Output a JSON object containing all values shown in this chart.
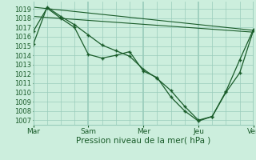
{
  "background_color": "#cceedd",
  "grid_color": "#99ccbb",
  "line_color": "#1a5c2a",
  "marker_color": "#1a5c2a",
  "xlabel": "Pression niveau de la mer( hPa )",
  "xtick_labels": [
    "Mar",
    "Sam",
    "Mer",
    "Jeu",
    "Ven"
  ],
  "xtick_positions": [
    0,
    48,
    96,
    144,
    192
  ],
  "xlim": [
    0,
    192
  ],
  "ylim": [
    1006.5,
    1019.8
  ],
  "ytick_min": 1007,
  "ytick_max": 1019,
  "series_curved1_x": [
    0,
    12,
    24,
    36,
    48,
    60,
    72,
    84,
    96,
    108,
    120,
    132,
    144,
    156,
    168,
    180,
    192
  ],
  "series_curved1_y": [
    1015.2,
    1019.2,
    1018.2,
    1017.3,
    1016.2,
    1015.1,
    1014.5,
    1013.9,
    1012.5,
    1011.5,
    1010.2,
    1008.5,
    1007.0,
    1007.4,
    1010.0,
    1012.1,
    1016.7
  ],
  "series_curved2_x": [
    0,
    12,
    24,
    36,
    48,
    60,
    72,
    84,
    96,
    108,
    120,
    132,
    144,
    156,
    168,
    180,
    192
  ],
  "series_curved2_y": [
    1016.6,
    1019.1,
    1018.0,
    1017.0,
    1014.1,
    1013.7,
    1014.0,
    1014.4,
    1012.3,
    1011.6,
    1009.5,
    1008.0,
    1006.9,
    1007.4,
    1010.1,
    1013.5,
    1016.8
  ],
  "series_line1_x": [
    0,
    192
  ],
  "series_line1_y": [
    1019.2,
    1016.7
  ],
  "series_line2_x": [
    0,
    192
  ],
  "series_line2_y": [
    1018.2,
    1016.5
  ],
  "vline_x": [
    0,
    48,
    96,
    144,
    192
  ]
}
